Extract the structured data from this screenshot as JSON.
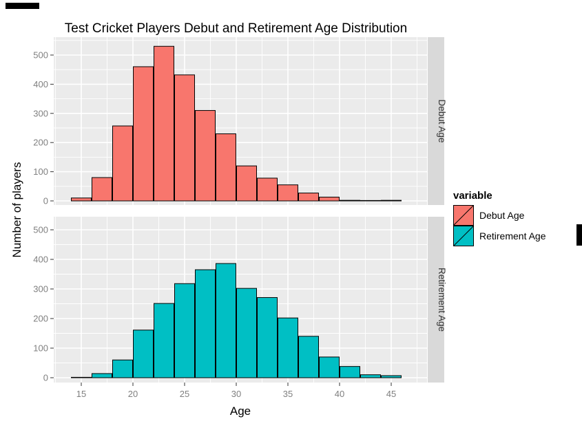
{
  "title": "Test Cricket Players Debut and Retirement Age Distribution",
  "legend": {
    "title": "variable",
    "items": [
      {
        "label": "Debut Age",
        "color": "#F8766D"
      },
      {
        "label": "Retirement Age",
        "color": "#00BFC4"
      }
    ]
  },
  "chart_data": {
    "type": "bar",
    "subtype": "faceted-histogram",
    "title": "Test Cricket Players Debut and Retirement Age Distribution",
    "xlabel": "Age",
    "ylabel": "Number of players",
    "bin_width": 2,
    "x_ticks": [
      15,
      20,
      25,
      30,
      35,
      40,
      45
    ],
    "y_ticks": [
      0,
      100,
      200,
      300,
      400,
      500
    ],
    "x_minor_ticks": [
      12.5,
      17.5,
      22.5,
      27.5,
      32.5,
      37.5,
      42.5,
      47.5
    ],
    "y_minor_ticks": [
      50,
      150,
      250,
      350,
      450,
      550
    ],
    "xlim": [
      12.3,
      48.5
    ],
    "ylim": [
      -15,
      560
    ],
    "grid": true,
    "legend_position": "right",
    "facets": [
      {
        "name": "Debut Age",
        "fill": "#F8766D",
        "bin_starts": [
          14,
          16,
          18,
          20,
          22,
          24,
          26,
          28,
          30,
          32,
          34,
          36,
          38,
          40,
          42,
          44
        ],
        "values": [
          10,
          80,
          257,
          460,
          530,
          432,
          310,
          230,
          120,
          78,
          55,
          27,
          13,
          2,
          1,
          2
        ]
      },
      {
        "name": "Retirement Age",
        "fill": "#00BFC4",
        "bin_starts": [
          14,
          16,
          18,
          20,
          22,
          24,
          26,
          28,
          30,
          32,
          34,
          36,
          38,
          40,
          42,
          44
        ],
        "values": [
          1,
          14,
          60,
          161,
          251,
          318,
          365,
          386,
          302,
          271,
          202,
          140,
          70,
          38,
          10,
          7
        ]
      }
    ],
    "style": {
      "panel_bg": "#EBEBEB",
      "grid_color": "#FFFFFF",
      "strip_bg": "#D9D9D9",
      "strip_text_color": "#333333",
      "bar_stroke": "#000000",
      "tick_label_color": "#7F7F7F",
      "tick_mark_color": "#333333"
    }
  }
}
